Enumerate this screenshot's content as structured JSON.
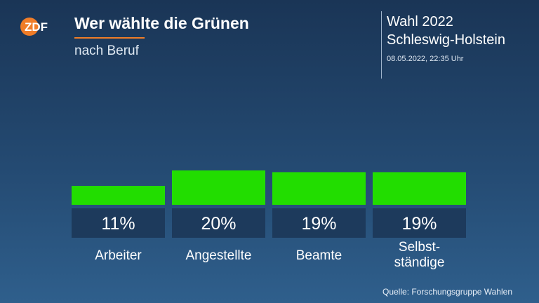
{
  "header": {
    "title": "Wer wählte die Grünen",
    "subtitle": "nach Beruf",
    "election_line1": "Wahl 2022",
    "election_line2": "Schleswig-Holstein",
    "datetime": "08.05.2022, 22:35 Uhr"
  },
  "logo": {
    "text": "ZDF",
    "color": "#f07d28"
  },
  "chart_data": {
    "type": "bar",
    "title": "Wer wählte die Grünen",
    "subtitle": "nach Beruf",
    "categories": [
      "Arbeiter",
      "Angestellte",
      "Beamte",
      "Selbst-\nständige"
    ],
    "values": [
      11,
      20,
      19,
      19
    ],
    "value_labels": [
      "11%",
      "20%",
      "19%",
      "19%"
    ],
    "unit": "%",
    "bar_color": "#22dd00",
    "label_box_color": "#1d3a5c",
    "ylim": [
      0,
      20
    ],
    "grid": false,
    "legend": "none"
  },
  "footer": {
    "source": "Quelle: Forschungsgruppe Wahlen"
  }
}
